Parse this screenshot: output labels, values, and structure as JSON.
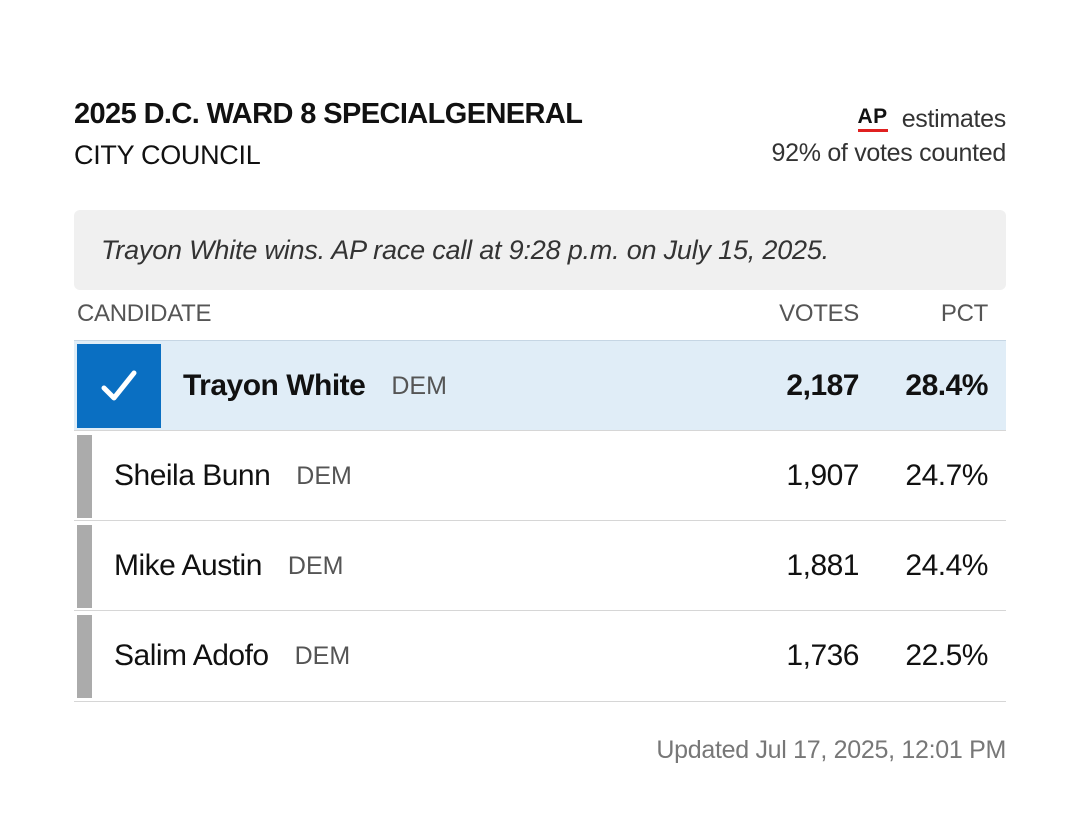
{
  "race": {
    "title": "2025 D.C. WARD 8 SPECIALGENERAL",
    "subtitle": "CITY COUNCIL"
  },
  "ap": {
    "logo_text": "AP",
    "estimates_label": "estimates",
    "votes_counted": "92% of votes counted"
  },
  "call_banner": "Trayon White wins. AP race call at 9:28 p.m. on July 15, 2025.",
  "columns": {
    "candidate": "CANDIDATE",
    "votes": "VOTES",
    "pct": "PCT"
  },
  "candidates": [
    {
      "name": "Trayon White",
      "party": "DEM",
      "votes": "2,187",
      "pct": "28.4%",
      "winner": true
    },
    {
      "name": "Sheila Bunn",
      "party": "DEM",
      "votes": "1,907",
      "pct": "24.7%",
      "winner": false
    },
    {
      "name": "Mike Austin",
      "party": "DEM",
      "votes": "1,881",
      "pct": "24.4%",
      "winner": false
    },
    {
      "name": "Salim Adofo",
      "party": "DEM",
      "votes": "1,736",
      "pct": "22.5%",
      "winner": false
    }
  ],
  "updated": {
    "label": "Updated",
    "timestamp": "Jul 17, 2025, 12:01 PM"
  },
  "colors": {
    "winner_accent": "#0a6fc2",
    "winner_row_bg": "#e0edf7",
    "loser_bar": "#ababab",
    "ap_underline": "#e02020",
    "banner_bg": "#f0f0f0"
  },
  "icons": {
    "winner": "checkmark-icon"
  }
}
